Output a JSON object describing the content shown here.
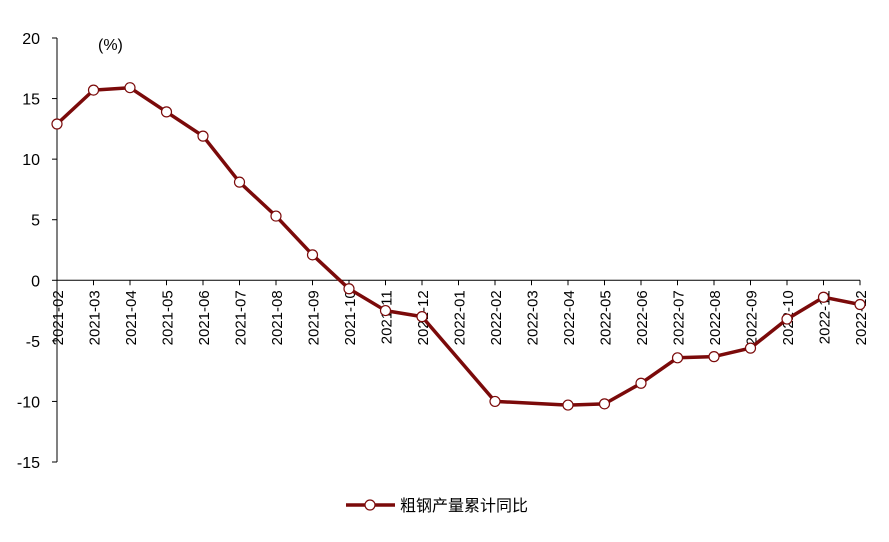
{
  "chart_data": {
    "type": "line",
    "unit_label": "(%)",
    "x": [
      "2021-02",
      "2021-03",
      "2021-04",
      "2021-05",
      "2021-06",
      "2021-07",
      "2021-08",
      "2021-09",
      "2021-10",
      "2021-11",
      "2021-12",
      "2022-01",
      "2022-02",
      "2022-03",
      "2022-04",
      "2022-05",
      "2022-06",
      "2022-07",
      "2022-08",
      "2022-09",
      "2022-10",
      "2022-11",
      "2022-12"
    ],
    "x_tick_labels": [
      "2021-02",
      "2021-03",
      "2021-04",
      "2021-05",
      "2021-06",
      "2021-07",
      "2021-08",
      "2021-09",
      "2021-10",
      "2021-11",
      "2021-12",
      "2022-01",
      "2022-02",
      "2022-03",
      "2022-04",
      "2022-05",
      "2022-06",
      "2022-07",
      "2022-08",
      "2022-09",
      "2022-10",
      "2022-11",
      "2022-12"
    ],
    "series": [
      {
        "name": "粗钢产量累计同比",
        "color": "#7B0A0A",
        "values": [
          12.9,
          15.7,
          15.9,
          13.9,
          11.9,
          8.1,
          5.3,
          2.1,
          -0.7,
          -2.5,
          -3.0,
          null,
          -10.0,
          null,
          -10.3,
          -10.2,
          -8.5,
          -6.4,
          -6.3,
          -5.6,
          -3.2,
          -1.4,
          -2.0
        ]
      }
    ],
    "ylim": [
      -15,
      20
    ],
    "yticks": [
      -15,
      -10,
      -5,
      0,
      5,
      10,
      15,
      20
    ],
    "legend_position": "bottom"
  }
}
